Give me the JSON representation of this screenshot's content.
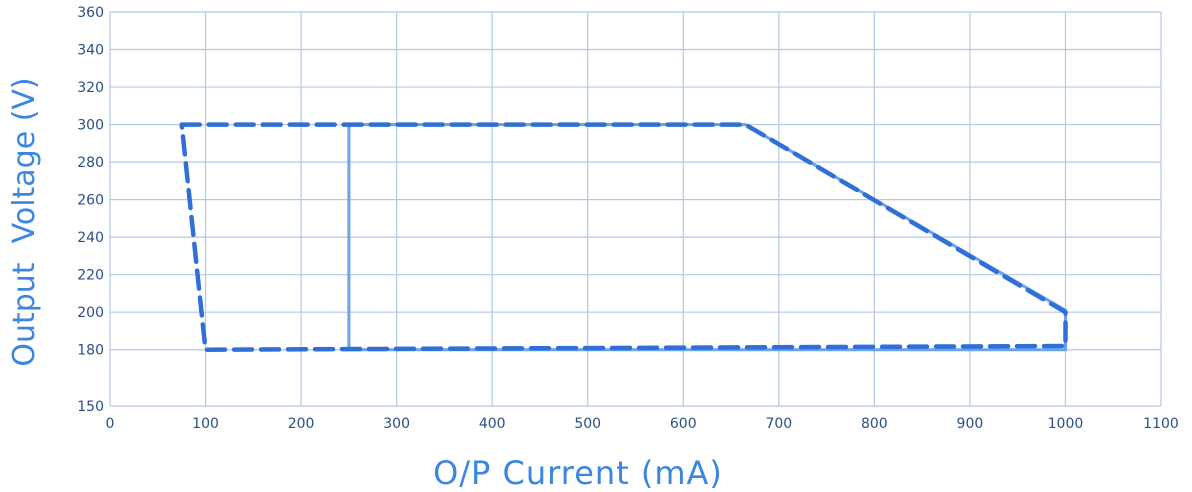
{
  "chart_data": {
    "type": "line",
    "xlabel": "O/P Current (mA)",
    "ylabel": "Output  Voltage (V)",
    "xlim": [
      0,
      1100
    ],
    "ylim": [
      150,
      360
    ],
    "x_ticks": [
      "0",
      "100",
      "200",
      "300",
      "400",
      "500",
      "600",
      "700",
      "800",
      "900",
      "1000",
      "1100"
    ],
    "y_ticks": [
      "150",
      "180",
      "200",
      "220",
      "240",
      "260",
      "280",
      "300",
      "320",
      "340",
      "360"
    ],
    "grid": true,
    "colors": {
      "grid": "#b4c8e6",
      "solid": "#6aa2ee",
      "dashed": "#2f6fd8",
      "text": "#2b4e8c",
      "title": "#3a86e0"
    },
    "series": [
      {
        "style": "solid",
        "x": [
          250,
          665,
          1000,
          1000,
          250,
          250
        ],
        "y": [
          300,
          300,
          201,
          180,
          180,
          300
        ]
      },
      {
        "style": "dashed",
        "x": [
          75,
          665,
          1000,
          1000,
          100,
          75
        ],
        "y": [
          300,
          300,
          200,
          182,
          180,
          300
        ]
      }
    ]
  }
}
